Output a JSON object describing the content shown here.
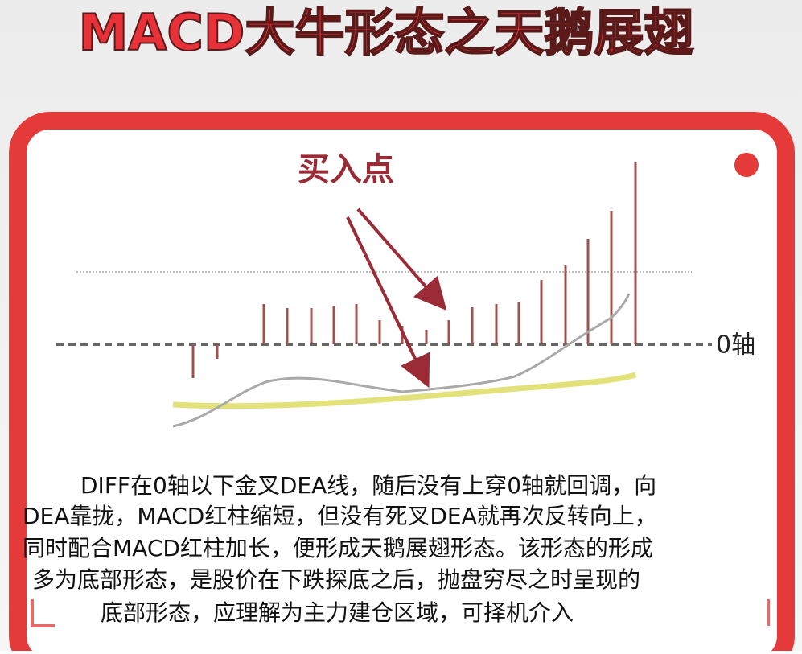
{
  "header": {
    "title": "MACD大牛形态之天鹅展翅"
  },
  "diagram": {
    "buy_label": "买入点",
    "zero_axis_label": "0轴"
  },
  "description": {
    "lines": [
      "DIFF在0轴以下金叉DEA线，随后没有上穿0轴就回调，向",
      "DEA靠拢，MACD红柱缩短，但没有死叉DEA就再次反转向上，",
      "同时配合MACD红柱加长，便形成天鹅展翅形态。该形态的形成",
      "多为底部形态，是股价在下跌探底之后，抛盘穷尽之时呈现的",
      "底部形态，应理解为主力建仓区域，可择机介入"
    ]
  }
}
